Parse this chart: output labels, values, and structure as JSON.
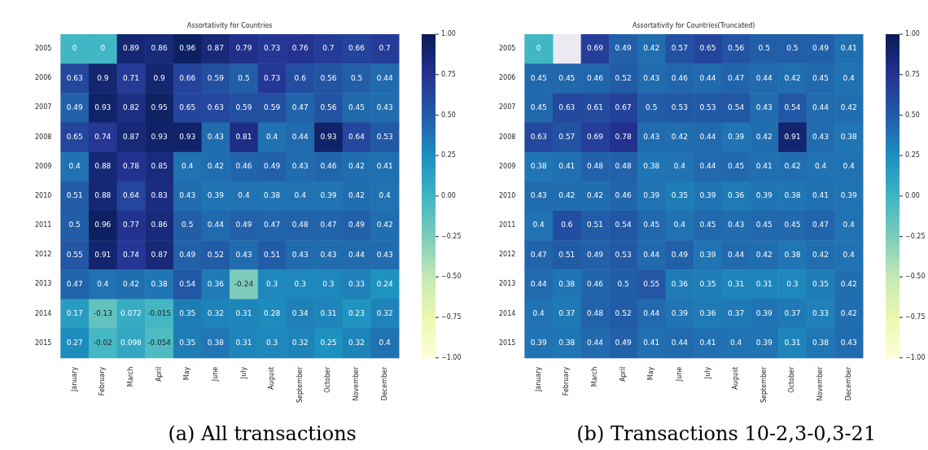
{
  "chart_data": [
    {
      "type": "heatmap",
      "title": "Assortativity for Countries",
      "categories": [
        "January",
        "February",
        "March",
        "April",
        "May",
        "June",
        "July",
        "August",
        "September",
        "October",
        "November",
        "December"
      ],
      "y_categories": [
        "2005",
        "2006",
        "2007",
        "2008",
        "2009",
        "2010",
        "2011",
        "2012",
        "2013",
        "2014",
        "2015"
      ],
      "cells": [
        [
          0,
          0,
          0.89,
          0.86,
          0.96,
          0.87,
          0.79,
          0.73,
          0.76,
          0.7,
          0.66,
          0.7
        ],
        [
          0.63,
          0.9,
          0.71,
          0.9,
          0.66,
          0.59,
          0.5,
          0.73,
          0.6,
          0.56,
          0.5,
          0.44
        ],
        [
          0.49,
          0.93,
          0.82,
          0.95,
          0.65,
          0.63,
          0.59,
          0.59,
          0.47,
          0.56,
          0.45,
          0.43
        ],
        [
          0.65,
          0.74,
          0.87,
          0.93,
          0.93,
          0.43,
          0.81,
          0.4,
          0.44,
          0.93,
          0.64,
          0.53
        ],
        [
          0.4,
          0.88,
          0.78,
          0.85,
          0.4,
          0.42,
          0.46,
          0.49,
          0.43,
          0.46,
          0.42,
          0.41
        ],
        [
          0.51,
          0.88,
          0.64,
          0.83,
          0.43,
          0.39,
          0.4,
          0.38,
          0.4,
          0.39,
          0.42,
          0.4
        ],
        [
          0.5,
          0.96,
          0.77,
          0.86,
          0.5,
          0.44,
          0.49,
          0.47,
          0.48,
          0.47,
          0.49,
          0.42
        ],
        [
          0.55,
          0.91,
          0.74,
          0.87,
          0.49,
          0.52,
          0.43,
          0.51,
          0.43,
          0.43,
          0.44,
          0.43
        ],
        [
          0.47,
          0.4,
          0.42,
          0.38,
          0.54,
          0.36,
          -0.24,
          0.3,
          0.3,
          0.3,
          0.33,
          0.24
        ],
        [
          0.17,
          -0.13,
          0.072,
          -0.015,
          0.35,
          0.32,
          0.31,
          0.28,
          0.34,
          0.31,
          0.23,
          0.32
        ],
        [
          0.27,
          -0.02,
          0.098,
          -0.054,
          0.35,
          0.38,
          0.31,
          0.3,
          0.32,
          0.25,
          0.32,
          0.4
        ]
      ],
      "data_labels": true,
      "clim": [
        -1,
        1
      ],
      "cticks": [
        {
          "value": -1,
          "label": "−1.00"
        },
        {
          "value": -0.75,
          "label": "−0.75"
        },
        {
          "value": -0.5,
          "label": "−0.50"
        },
        {
          "value": -0.25,
          "label": "−0.25"
        },
        {
          "value": 0,
          "label": "0.00"
        },
        {
          "value": 0.25,
          "label": "0.25"
        },
        {
          "value": 0.5,
          "label": "0.50"
        },
        {
          "value": 0.75,
          "label": "0.75"
        },
        {
          "value": 1,
          "label": "1.00"
        }
      ],
      "annotations": [
        "(a) All transactions"
      ]
    },
    {
      "type": "heatmap",
      "title": "Assortativity for Countries(Truncated)",
      "categories": [
        "January",
        "February",
        "March",
        "April",
        "May",
        "June",
        "July",
        "August",
        "September",
        "October",
        "November",
        "December"
      ],
      "y_categories": [
        "2005",
        "2006",
        "2007",
        "2008",
        "2009",
        "2010",
        "2011",
        "2012",
        "2013",
        "2014",
        "2015"
      ],
      "cells": [
        [
          0,
          null,
          0.69,
          0.49,
          0.42,
          0.57,
          0.65,
          0.56,
          0.5,
          0.5,
          0.49,
          0.41
        ],
        [
          0.45,
          0.45,
          0.46,
          0.52,
          0.43,
          0.46,
          0.44,
          0.47,
          0.44,
          0.42,
          0.45,
          0.4
        ],
        [
          0.45,
          0.63,
          0.61,
          0.67,
          0.5,
          0.53,
          0.53,
          0.54,
          0.43,
          0.54,
          0.44,
          0.42
        ],
        [
          0.63,
          0.57,
          0.69,
          0.78,
          0.43,
          0.42,
          0.44,
          0.39,
          0.42,
          0.91,
          0.43,
          0.38
        ],
        [
          0.38,
          0.41,
          0.48,
          0.48,
          0.38,
          0.4,
          0.44,
          0.45,
          0.41,
          0.42,
          0.4,
          0.4
        ],
        [
          0.43,
          0.42,
          0.42,
          0.46,
          0.39,
          0.35,
          0.39,
          0.36,
          0.39,
          0.38,
          0.41,
          0.39
        ],
        [
          0.4,
          0.6,
          0.51,
          0.54,
          0.45,
          0.4,
          0.45,
          0.43,
          0.45,
          0.45,
          0.47,
          0.4
        ],
        [
          0.47,
          0.51,
          0.49,
          0.53,
          0.44,
          0.49,
          0.39,
          0.44,
          0.42,
          0.38,
          0.42,
          0.4
        ],
        [
          0.44,
          0.38,
          0.46,
          0.5,
          0.55,
          0.36,
          0.35,
          0.31,
          0.31,
          0.3,
          0.35,
          0.42
        ],
        [
          0.4,
          0.37,
          0.48,
          0.52,
          0.44,
          0.39,
          0.36,
          0.37,
          0.39,
          0.37,
          0.33,
          0.42
        ],
        [
          0.39,
          0.38,
          0.44,
          0.49,
          0.41,
          0.44,
          0.41,
          0.4,
          0.39,
          0.31,
          0.38,
          0.43
        ]
      ],
      "data_labels": true,
      "clim": [
        -1,
        1
      ],
      "cticks": [
        {
          "value": -1,
          "label": "−1.00"
        },
        {
          "value": -0.75,
          "label": "−0.75"
        },
        {
          "value": -0.5,
          "label": "−0.50"
        },
        {
          "value": -0.25,
          "label": "−0.25"
        },
        {
          "value": 0,
          "label": "0.00"
        },
        {
          "value": 0.25,
          "label": "0.25"
        },
        {
          "value": 0.5,
          "label": "0.50"
        },
        {
          "value": 0.75,
          "label": "0.75"
        },
        {
          "value": 1,
          "label": "1.00"
        }
      ],
      "annotations": [
        "(b) Transactions 10-2,3-0,3-21"
      ]
    }
  ]
}
